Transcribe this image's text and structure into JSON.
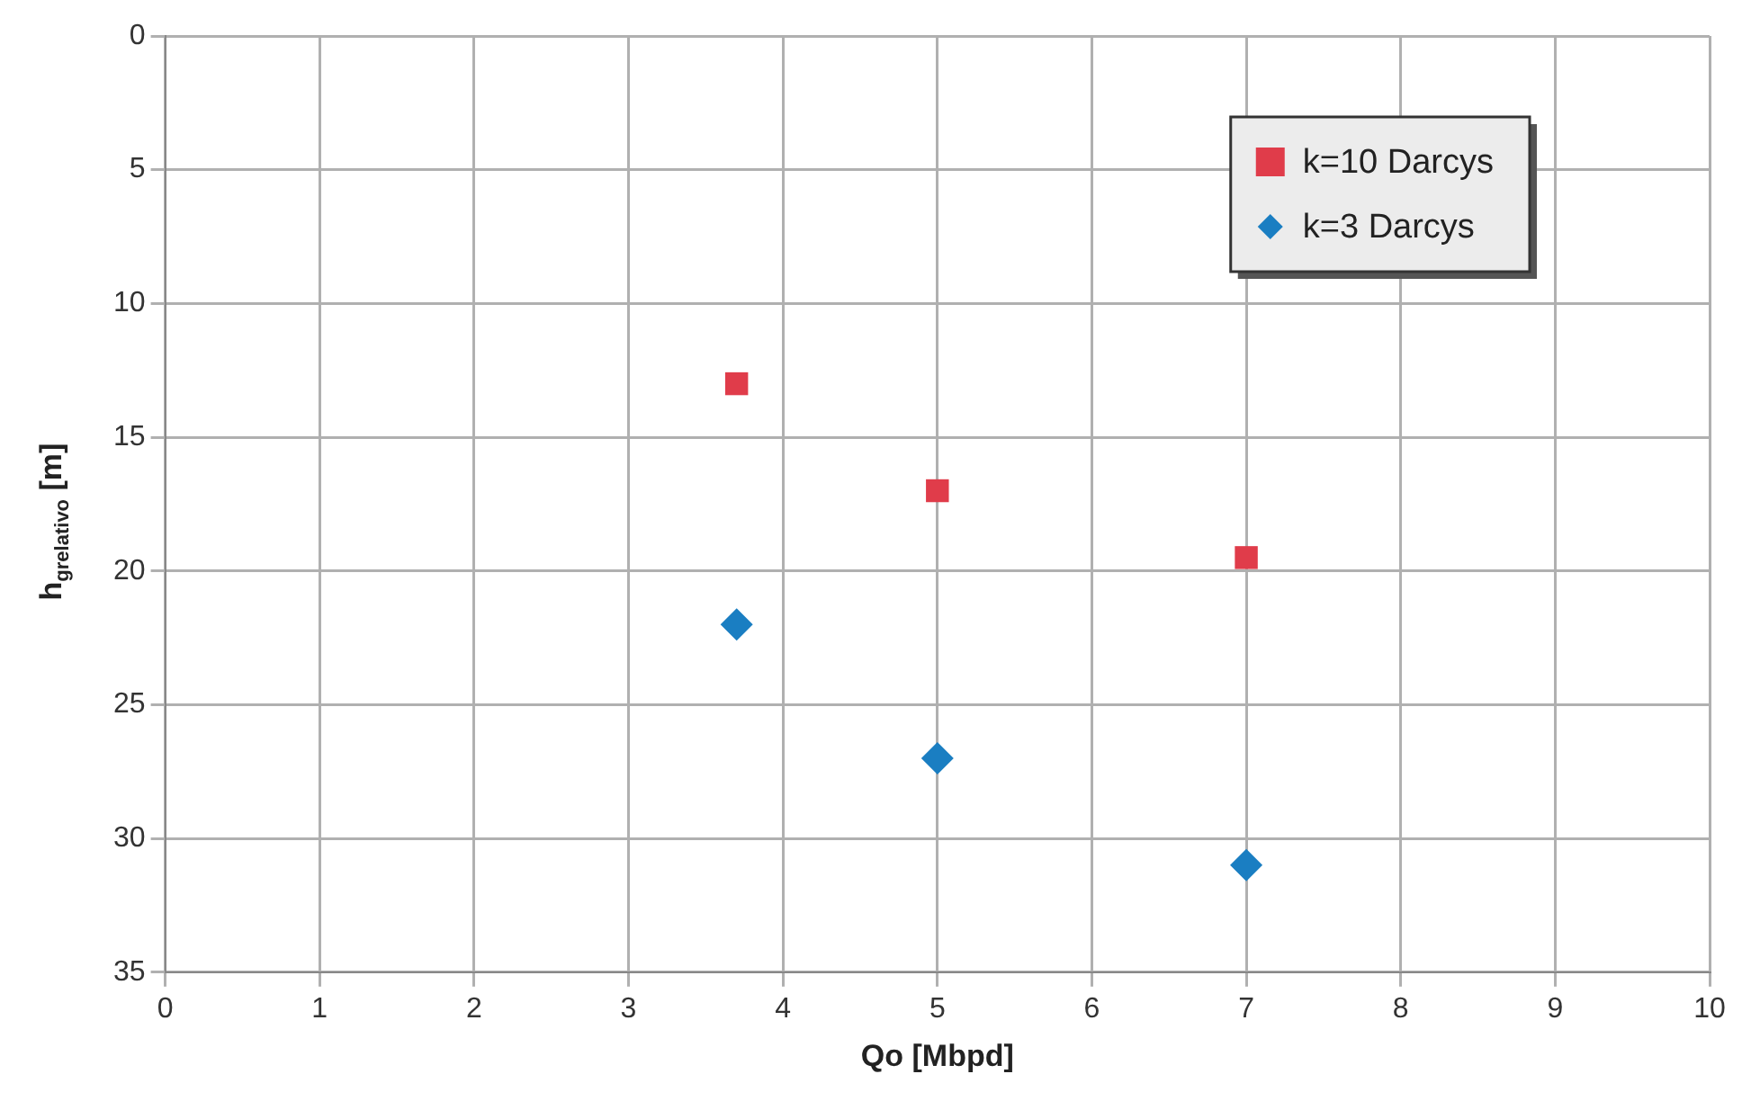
{
  "chart_data": {
    "type": "scatter",
    "xlabel": "Qo [Mbpd]",
    "ylabel": "h$_{grelativo}$ [m]",
    "xlim": [
      0,
      10
    ],
    "xticks": [
      0,
      1,
      2,
      3,
      4,
      5,
      6,
      7,
      8,
      9,
      10
    ],
    "ylim": [
      35,
      0
    ],
    "yticks": [
      0,
      5,
      10,
      15,
      20,
      25,
      30,
      35
    ],
    "grid": true,
    "legend": "top right",
    "series": [
      {
        "name": "k=10 Darcys",
        "color": "#e03c4a",
        "marker": "square",
        "x": [
          3.7,
          5,
          7
        ],
        "values": [
          13,
          17,
          19.5
        ]
      },
      {
        "name": "k=3 Darcys",
        "color": "#1a7ec2",
        "marker": "diamond",
        "x": [
          3.7,
          5,
          7
        ],
        "values": [
          22,
          27,
          31
        ]
      }
    ]
  }
}
